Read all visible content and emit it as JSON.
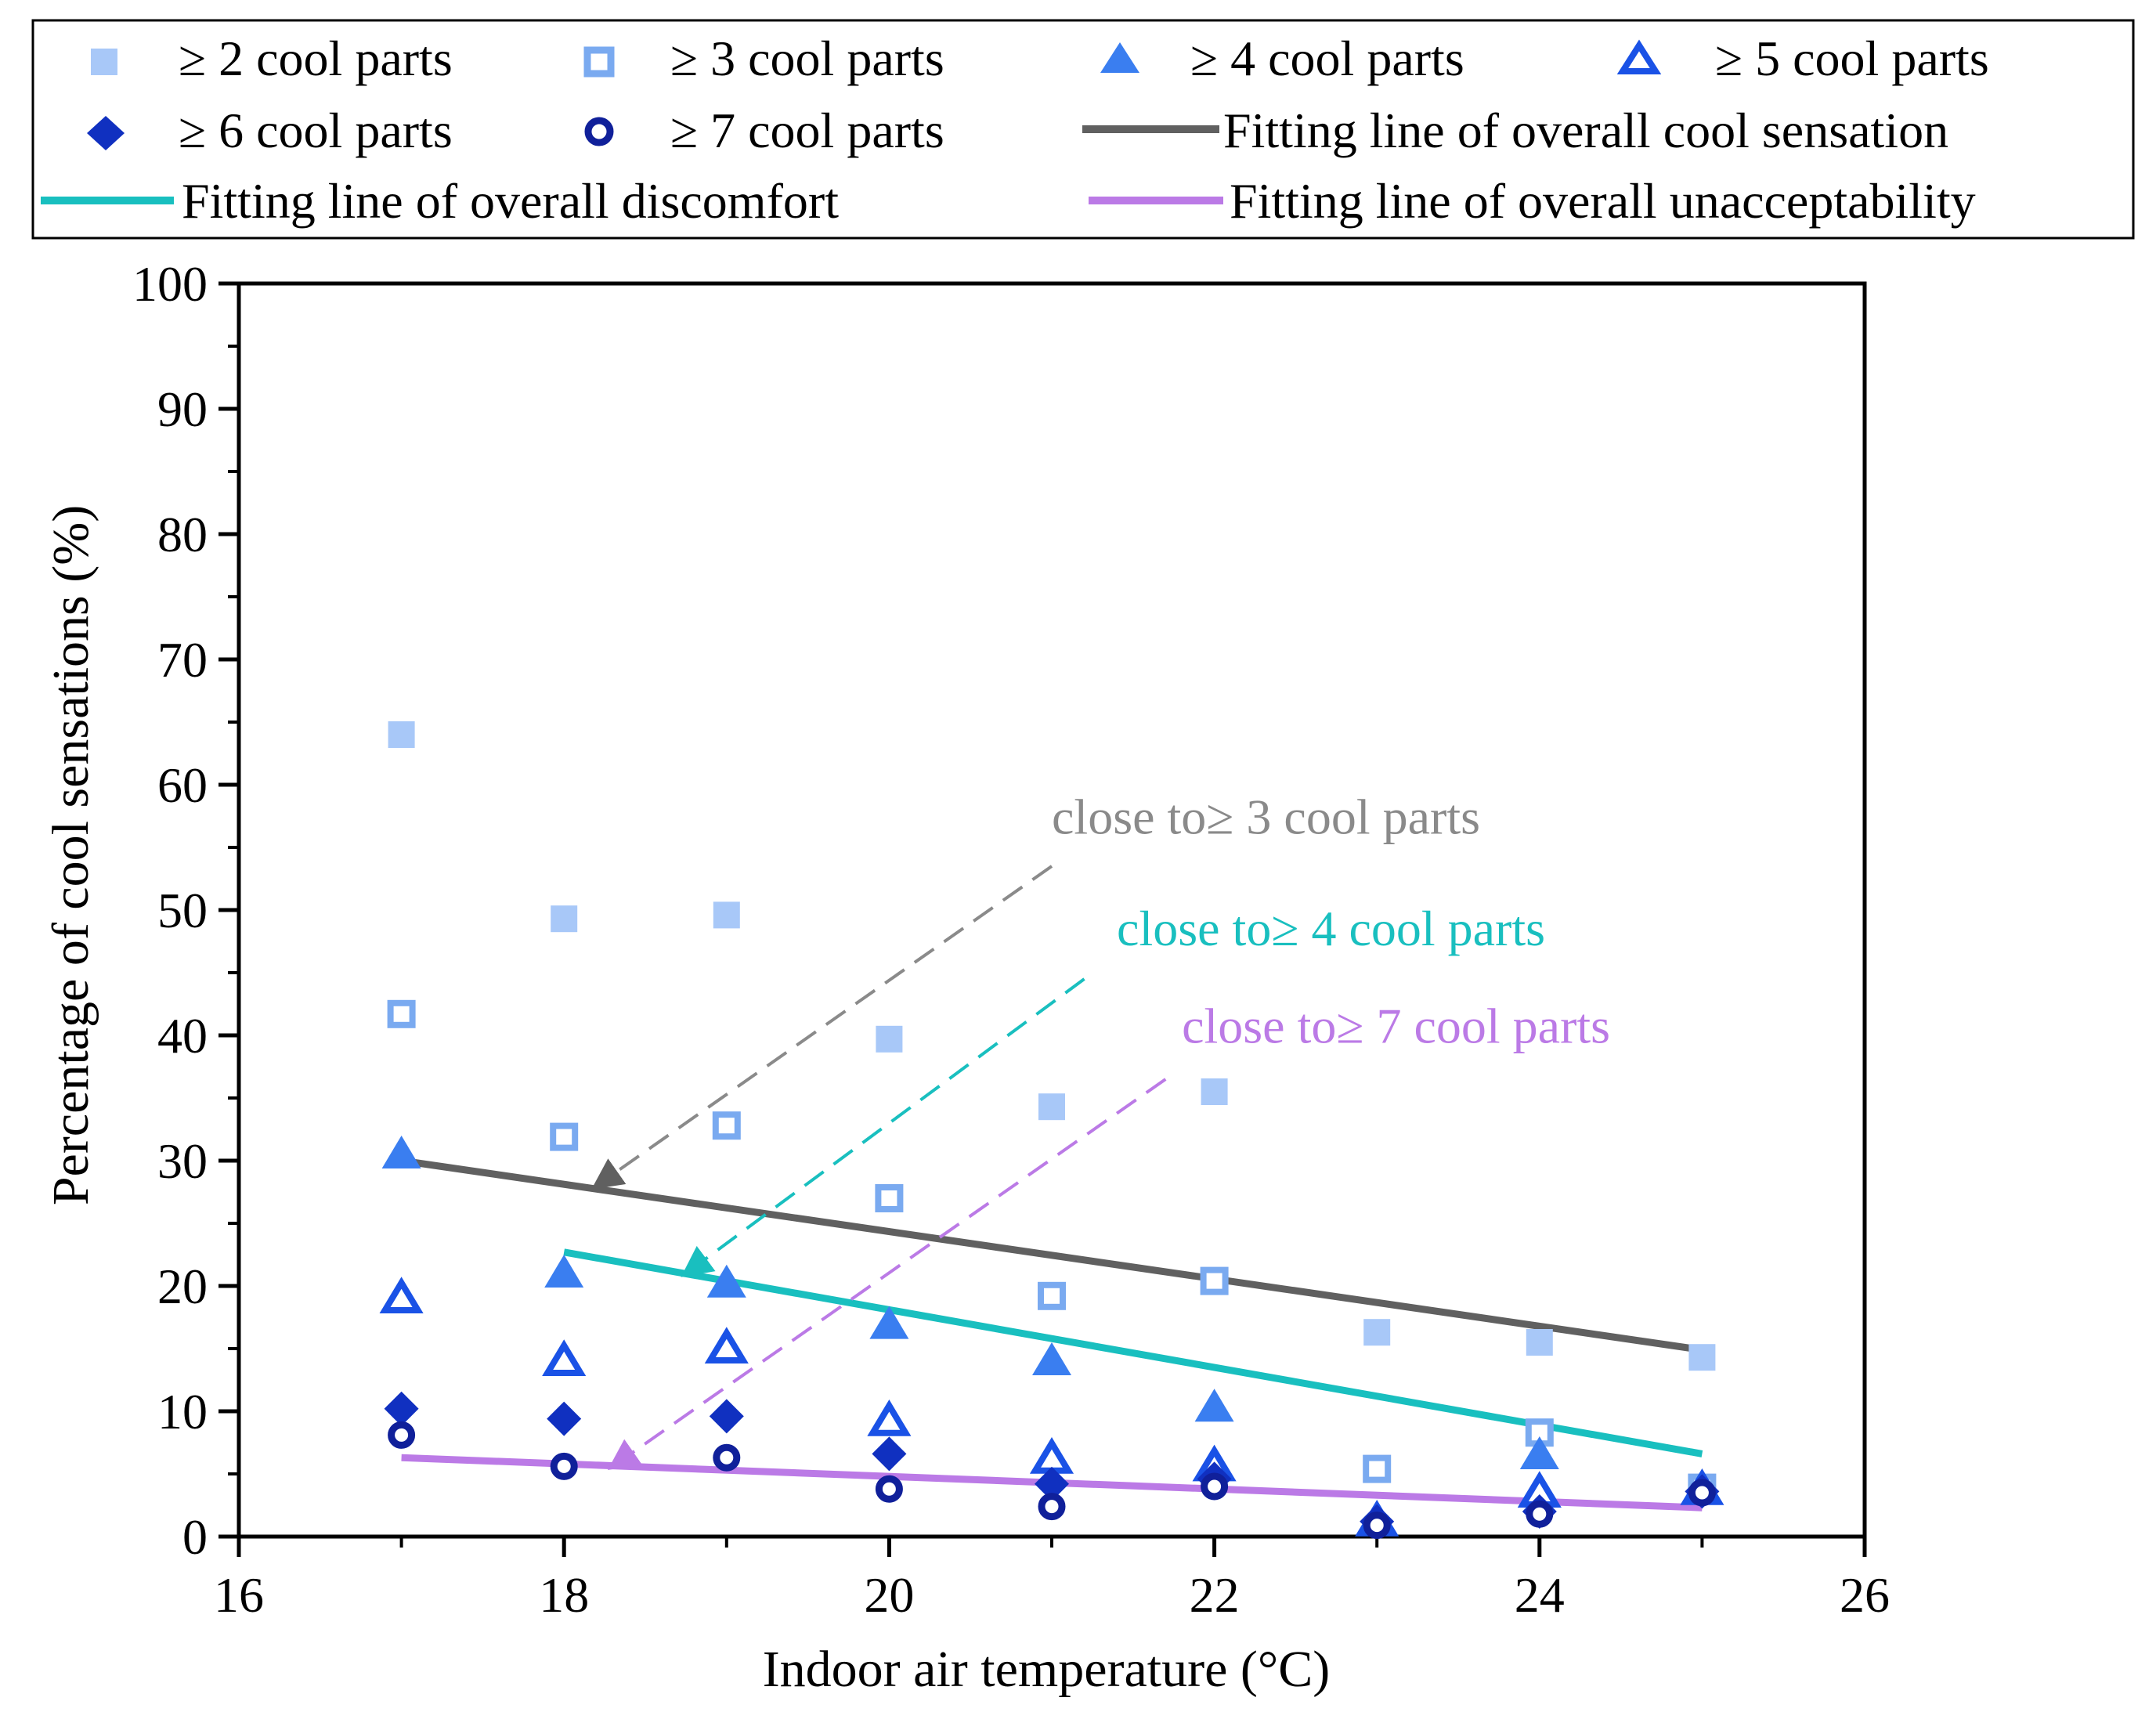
{
  "colors": {
    "c2": "#a8c8f8",
    "c3": "#7aaaf0",
    "c4": "#3a7ef0",
    "c5": "#1a52e6",
    "c6": "#1030c0",
    "c7": "#10209a",
    "fit_cool": "#606060",
    "fit_discomfort": "#19bfbf",
    "fit_unacc": "#bb7ae6",
    "ann_cool": "#8a8a8a",
    "ann_disc": "#19bfbf",
    "ann_unacc": "#bb7ae6"
  },
  "chart_data": {
    "type": "scatter",
    "xlabel": "Indoor air temperature (°C)",
    "ylabel": "Percentage of  cool sensations (%)",
    "xlim": [
      16,
      26
    ],
    "ylim": [
      0,
      100
    ],
    "xticks": [
      "16",
      "18",
      "20",
      "22",
      "24",
      "26"
    ],
    "yticks": [
      "0",
      "10",
      "20",
      "30",
      "40",
      "50",
      "60",
      "70",
      "80",
      "90",
      "100"
    ],
    "legend_position": "top",
    "series": [
      {
        "name": "≥ 2 cool parts",
        "marker": "square-filled",
        "color_key": "c2",
        "x": [
          17,
          18,
          19,
          20,
          21,
          22,
          23,
          24,
          25
        ],
        "y": [
          64,
          49.3,
          49.6,
          39.7,
          34.3,
          35.5,
          16.3,
          15.5,
          14.3
        ]
      },
      {
        "name": "≥ 3 cool parts",
        "marker": "square-open",
        "color_key": "c3",
        "x": [
          17,
          18,
          19,
          20,
          21,
          22,
          23,
          24,
          25
        ],
        "y": [
          41.7,
          31.9,
          32.8,
          27,
          19.2,
          20.4,
          5.4,
          8.3,
          3.9
        ]
      },
      {
        "name": "≥ 4 cool parts",
        "marker": "triangle-filled",
        "color_key": "c4",
        "x": [
          17,
          18,
          19,
          20,
          21,
          22,
          23,
          24,
          25
        ],
        "y": [
          30.5,
          21,
          20.2,
          16.9,
          14,
          10.3,
          1.3,
          6.5,
          3.8
        ]
      },
      {
        "name": "≥ 5 cool parts",
        "marker": "triangle-open",
        "color_key": "c5",
        "x": [
          17,
          18,
          19,
          20,
          21,
          22,
          23,
          24,
          25
        ],
        "y": [
          19,
          14,
          15,
          9.2,
          6.2,
          5.6,
          1.2,
          3.5,
          3.7
        ]
      },
      {
        "name": "≥ 6 cool parts",
        "marker": "diamond-filled",
        "color_key": "c6",
        "x": [
          17,
          18,
          19,
          20,
          21,
          22,
          23,
          24,
          25
        ],
        "y": [
          10.2,
          9.4,
          9.6,
          6.6,
          4.2,
          4.6,
          1.2,
          2,
          3.6
        ]
      },
      {
        "name": "≥ 7 cool parts",
        "marker": "circle-open",
        "color_key": "c7",
        "x": [
          17,
          18,
          19,
          20,
          21,
          22,
          23,
          24,
          25
        ],
        "y": [
          8.1,
          5.6,
          6.3,
          3.8,
          2.4,
          4,
          0.9,
          1.8,
          3.5
        ]
      }
    ],
    "fit_lines": [
      {
        "name": "Fitting line of overall cool sensation",
        "color_key": "fit_cool",
        "x": [
          17,
          25
        ],
        "y": [
          30,
          14.9
        ]
      },
      {
        "name": "Fitting line of overall discomfort",
        "color_key": "fit_discomfort",
        "x": [
          18,
          25
        ],
        "y": [
          22.7,
          6.6
        ]
      },
      {
        "name": "Fitting line of overall unacceptability",
        "color_key": "fit_unacc",
        "x": [
          17,
          25
        ],
        "y": [
          6.3,
          2.3
        ]
      }
    ],
    "annotations": [
      {
        "text": "close to≥ 3 cool parts",
        "color_key": "ann_cool",
        "text_at": [
          21.0,
          56.1
        ],
        "arrow_from": [
          21.0,
          53.5
        ],
        "arrow_to": [
          18.2,
          28.0
        ]
      },
      {
        "text": "close to≥ 4 cool parts",
        "color_key": "ann_disc",
        "text_at": [
          21.4,
          47.2
        ],
        "arrow_from": [
          21.2,
          44.5
        ],
        "arrow_to": [
          18.75,
          21.0
        ]
      },
      {
        "text": "close to≥ 7 cool parts",
        "color_key": "ann_unacc",
        "text_at": [
          21.8,
          39.4
        ],
        "arrow_from": [
          21.7,
          36.5
        ],
        "arrow_to": [
          18.3,
          5.6
        ]
      }
    ]
  }
}
